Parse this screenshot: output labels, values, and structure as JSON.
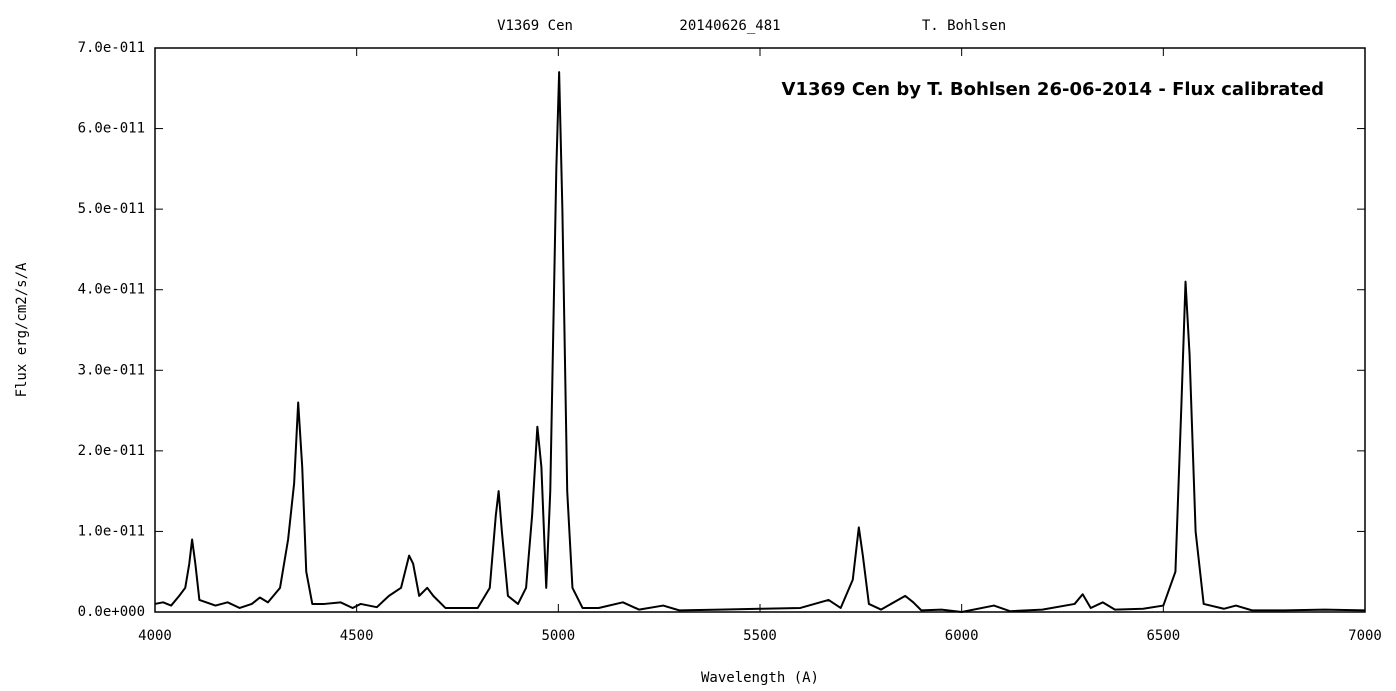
{
  "chart_data": {
    "type": "line",
    "title_parts": [
      "V1369 Cen",
      "20140626_481",
      "T. Bohlsen"
    ],
    "annotation": "V1369 Cen by T. Bohlsen 26-06-2014   -   Flux calibrated",
    "x_label": "Wavelength (A)",
    "y_label": "Flux erg/cm2/s/A",
    "xlim": [
      4000,
      7000
    ],
    "xticks": [
      4000,
      4500,
      5000,
      5500,
      6000,
      6500,
      7000
    ],
    "ylim": [
      0,
      7e-11
    ],
    "yticks": [
      {
        "value": 0,
        "label": "0.0e+000"
      },
      {
        "value": 1e-11,
        "label": "1.0e-011"
      },
      {
        "value": 2e-11,
        "label": "2.0e-011"
      },
      {
        "value": 3e-11,
        "label": "3.0e-011"
      },
      {
        "value": 4e-11,
        "label": "4.0e-011"
      },
      {
        "value": 5e-11,
        "label": "5.0e-011"
      },
      {
        "value": 6e-11,
        "label": "6.0e-011"
      },
      {
        "value": 7e-11,
        "label": "7.0e-011"
      }
    ],
    "series": [
      {
        "color": "#000000",
        "x": [
          4000,
          4020,
          4040,
          4060,
          4075,
          4085,
          4092,
          4100,
          4110,
          4150,
          4180,
          4210,
          4240,
          4260,
          4280,
          4310,
          4330,
          4345,
          4355,
          4365,
          4375,
          4390,
          4420,
          4460,
          4490,
          4510,
          4550,
          4580,
          4610,
          4630,
          4640,
          4655,
          4675,
          4690,
          4720,
          4760,
          4800,
          4830,
          4845,
          4852,
          4860,
          4875,
          4900,
          4920,
          4935,
          4948,
          4958,
          4970,
          4980,
          4995,
          5002,
          5010,
          5022,
          5035,
          5060,
          5100,
          5160,
          5200,
          5260,
          5300,
          5400,
          5500,
          5600,
          5670,
          5700,
          5730,
          5745,
          5755,
          5770,
          5800,
          5860,
          5880,
          5900,
          5950,
          6000,
          6080,
          6120,
          6200,
          6280,
          6300,
          6320,
          6350,
          6380,
          6450,
          6500,
          6530,
          6545,
          6555,
          6565,
          6580,
          6600,
          6650,
          6680,
          6720,
          6800,
          6900,
          7000
        ],
        "values": [
          1e-12,
          1.2e-12,
          8e-13,
          2e-12,
          3e-12,
          6e-12,
          9e-12,
          6e-12,
          1.5e-12,
          8e-13,
          1.2e-12,
          5e-13,
          1e-12,
          1.8e-12,
          1.2e-12,
          3e-12,
          9e-12,
          1.6e-11,
          2.6e-11,
          1.8e-11,
          5e-12,
          1e-12,
          1e-12,
          1.2e-12,
          5e-13,
          1e-12,
          6e-13,
          2e-12,
          3e-12,
          7e-12,
          6e-12,
          2e-12,
          3e-12,
          2e-12,
          5e-13,
          5e-13,
          5e-13,
          3e-12,
          1.2e-11,
          1.5e-11,
          1e-11,
          2e-12,
          1e-12,
          3e-12,
          1.2e-11,
          2.3e-11,
          1.8e-11,
          3e-12,
          1.5e-11,
          5.5e-11,
          6.7e-11,
          5e-11,
          1.5e-11,
          3e-12,
          5e-13,
          5e-13,
          1.2e-12,
          3e-13,
          8e-13,
          2e-13,
          3e-13,
          4e-13,
          5e-13,
          1.5e-12,
          5e-13,
          4e-12,
          1.05e-11,
          7e-12,
          1e-12,
          3e-13,
          2e-12,
          1.2e-12,
          2e-13,
          3e-13,
          0,
          8e-13,
          1e-13,
          3e-13,
          1e-12,
          2.2e-12,
          5e-13,
          1.2e-12,
          3e-13,
          4e-13,
          8e-13,
          5e-12,
          2.6e-11,
          4.1e-11,
          3.2e-11,
          1e-11,
          1e-12,
          4e-13,
          8e-13,
          2e-13,
          2e-13,
          3e-13,
          2e-13
        ]
      }
    ]
  }
}
